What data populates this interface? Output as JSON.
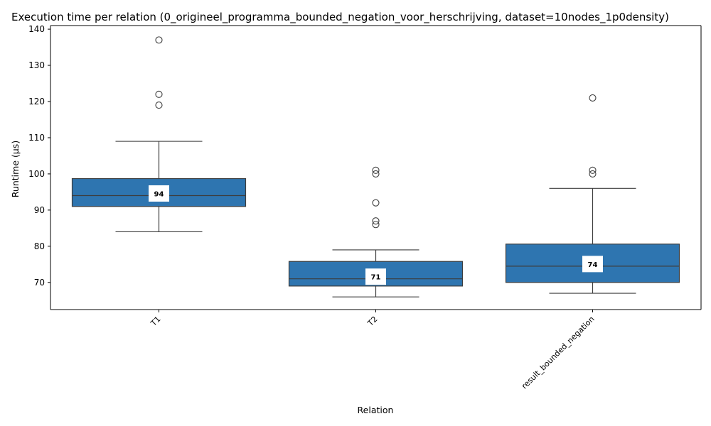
{
  "chart_data": {
    "type": "box",
    "title": "Execution time per relation (0_origineel_programma_bounded_negation_voor_herschrijving, dataset=10nodes_1p0density)",
    "xlabel": "Relation",
    "ylabel": "Runtime (µs)",
    "ylim": [
      62.5,
      141
    ],
    "yticks": [
      70,
      80,
      90,
      100,
      110,
      120,
      130,
      140
    ],
    "categories": [
      "T1",
      "T2",
      "result_bounded_negation"
    ],
    "boxes": [
      {
        "category": "T1",
        "whisker_low": 84,
        "q1": 91,
        "median": 94,
        "q3": 98.7,
        "whisker_high": 109,
        "outliers": [
          119,
          122,
          137
        ],
        "median_label": "94"
      },
      {
        "category": "T2",
        "whisker_low": 66,
        "q1": 69,
        "median": 71,
        "q3": 75.8,
        "whisker_high": 79,
        "outliers": [
          86,
          87,
          92,
          100,
          101
        ],
        "median_label": "71"
      },
      {
        "category": "result_bounded_negation",
        "whisker_low": 67,
        "q1": 70,
        "median": 74.5,
        "q3": 80.6,
        "whisker_high": 96,
        "outliers": [
          100,
          101,
          121
        ],
        "median_label": "74"
      }
    ],
    "box_color": "#2e75b0",
    "line_color": "#3d3d3d",
    "grid": false,
    "legend": "none"
  }
}
